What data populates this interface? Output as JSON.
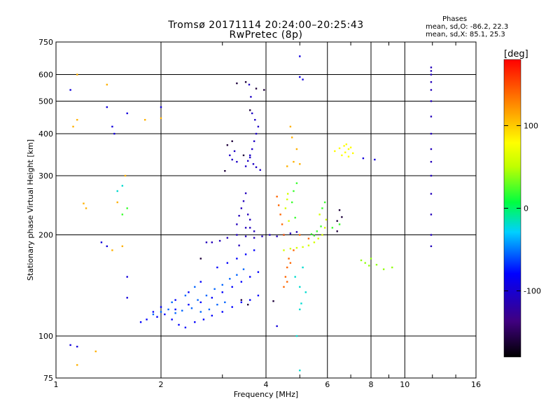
{
  "header": {
    "title": "Tromsø 20171114 20:24:00–20:25:43",
    "subtitle": "RwPretec (8p)"
  },
  "stats": {
    "heading": "Phases",
    "o_mode": "mean, sd,O: -86.2, 22.3",
    "x_mode": "mean, sd,X:  85.1, 25.3"
  },
  "colorbar": {
    "unit": "[deg]",
    "ticks": [
      100,
      0,
      -100
    ],
    "range": [
      -180,
      180
    ]
  },
  "chart_data": {
    "type": "scatter",
    "xlabel": "Frequency [MHz]",
    "ylabel": "Stationary phase Virtual Height [km]",
    "x_scale": "log",
    "y_scale": "log",
    "xlim": [
      1,
      16
    ],
    "ylim": [
      75,
      750
    ],
    "x_ticks": [
      1,
      2,
      4,
      6,
      8,
      10,
      16
    ],
    "y_ticks": [
      75,
      100,
      200,
      300,
      400,
      500,
      600,
      750
    ],
    "x_grid": [
      1,
      2,
      4,
      6,
      8,
      10,
      16
    ],
    "y_grid": [
      75,
      100,
      200,
      300,
      400,
      500,
      600,
      750
    ],
    "color_scale": "phase (deg), rainbow from -180 (black) to 180 (red)",
    "series": [
      {
        "values": [
          [
            1.75,
            110
          ],
          [
            1.82,
            112
          ],
          [
            1.95,
            114
          ],
          [
            2.05,
            116
          ],
          [
            2.15,
            112
          ],
          [
            2.25,
            108
          ],
          [
            2.35,
            106
          ],
          [
            2.5,
            110
          ],
          [
            2.65,
            112
          ],
          [
            2.8,
            115
          ],
          [
            3.0,
            118
          ],
          [
            3.2,
            122
          ],
          [
            3.4,
            126
          ],
          [
            3.6,
            128
          ],
          [
            3.8,
            132
          ],
          [
            2.2,
            120
          ],
          [
            2.4,
            124
          ],
          [
            2.6,
            126
          ],
          [
            2.8,
            130
          ],
          [
            3.0,
            135
          ],
          [
            3.2,
            140
          ],
          [
            3.4,
            145
          ],
          [
            3.6,
            150
          ],
          [
            3.8,
            155
          ],
          [
            2.9,
            160
          ],
          [
            3.1,
            165
          ],
          [
            3.3,
            170
          ],
          [
            3.5,
            175
          ],
          [
            3.7,
            180
          ],
          [
            2.6,
            145
          ],
          [
            2.4,
            135
          ],
          [
            2.2,
            128
          ],
          [
            2.0,
            122
          ],
          [
            1.9,
            118
          ]
        ],
        "phase": -80
      },
      {
        "values": [
          [
            1.9,
            116
          ],
          [
            2.0,
            118
          ],
          [
            2.1,
            120
          ],
          [
            2.2,
            117
          ],
          [
            2.3,
            119
          ],
          [
            2.45,
            121
          ],
          [
            2.6,
            118
          ],
          [
            2.75,
            120
          ],
          [
            2.9,
            124
          ],
          [
            3.05,
            126
          ],
          [
            2.55,
            128
          ],
          [
            2.7,
            132
          ],
          [
            2.85,
            138
          ],
          [
            3.0,
            142
          ],
          [
            3.15,
            148
          ],
          [
            3.3,
            152
          ],
          [
            3.45,
            158
          ],
          [
            2.5,
            140
          ],
          [
            2.35,
            132
          ],
          [
            2.15,
            126
          ]
        ],
        "phase": -55
      },
      {
        "values": [
          [
            3.3,
            215
          ],
          [
            3.35,
            228
          ],
          [
            3.4,
            240
          ],
          [
            3.45,
            252
          ],
          [
            3.5,
            266
          ],
          [
            3.55,
            230
          ],
          [
            3.6,
            210
          ],
          [
            3.7,
            205
          ],
          [
            3.3,
            200
          ],
          [
            3.5,
            198
          ],
          [
            3.7,
            196
          ],
          [
            3.9,
            198
          ],
          [
            4.1,
            200
          ],
          [
            4.3,
            198
          ],
          [
            4.5,
            200
          ],
          [
            4.7,
            202
          ],
          [
            4.9,
            204
          ],
          [
            3.1,
            196
          ],
          [
            2.95,
            192
          ],
          [
            2.8,
            190
          ],
          [
            2.7,
            190
          ],
          [
            3.35,
            186
          ],
          [
            3.5,
            210
          ],
          [
            3.6,
            222
          ]
        ],
        "phase": -110
      },
      {
        "values": [
          [
            3.5,
            320
          ],
          [
            3.55,
            332
          ],
          [
            3.6,
            345
          ],
          [
            3.65,
            360
          ],
          [
            3.7,
            380
          ],
          [
            3.75,
            400
          ],
          [
            3.8,
            420
          ],
          [
            3.72,
            440
          ],
          [
            3.65,
            460
          ],
          [
            3.6,
            340
          ],
          [
            3.68,
            325
          ],
          [
            3.75,
            318
          ],
          [
            3.85,
            312
          ],
          [
            3.62,
            515
          ],
          [
            3.58,
            560
          ],
          [
            3.2,
            335
          ],
          [
            3.25,
            355
          ],
          [
            3.15,
            345
          ],
          [
            3.3,
            330
          ]
        ],
        "phase": -105
      },
      {
        "values": [
          [
            4.5,
            180
          ],
          [
            4.7,
            182
          ],
          [
            4.9,
            183
          ],
          [
            5.1,
            184
          ],
          [
            5.3,
            186
          ],
          [
            5.5,
            190
          ],
          [
            5.65,
            195
          ],
          [
            5.8,
            200
          ],
          [
            5.9,
            210
          ],
          [
            5.95,
            222
          ],
          [
            5.7,
            230
          ],
          [
            4.55,
            240
          ],
          [
            4.6,
            255
          ],
          [
            4.62,
            265
          ],
          [
            4.65,
            220
          ]
        ],
        "phase": 60
      },
      {
        "values": [
          [
            4.5,
            140
          ],
          [
            4.55,
            150
          ],
          [
            4.6,
            160
          ],
          [
            4.65,
            170
          ],
          [
            4.5,
            200
          ],
          [
            4.45,
            215
          ],
          [
            4.4,
            230
          ],
          [
            4.35,
            245
          ],
          [
            4.3,
            260
          ],
          [
            5.3,
            195
          ],
          [
            5.0,
            200
          ],
          [
            4.8,
            180
          ],
          [
            4.7,
            165
          ],
          [
            4.6,
            145
          ]
        ],
        "phase": 140
      },
      {
        "values": [
          [
            6.3,
            355
          ],
          [
            6.5,
            362
          ],
          [
            6.7,
            368
          ],
          [
            6.9,
            360
          ],
          [
            7.1,
            350
          ],
          [
            6.6,
            345
          ],
          [
            6.8,
            372
          ],
          [
            7.0,
            364
          ],
          [
            6.75,
            352
          ],
          [
            6.9,
            342
          ]
        ],
        "phase": 80
      },
      {
        "values": [
          [
            11.9,
            185
          ],
          [
            11.9,
            200
          ],
          [
            11.9,
            230
          ],
          [
            11.9,
            265
          ],
          [
            11.9,
            300
          ],
          [
            11.9,
            330
          ],
          [
            11.9,
            360
          ],
          [
            11.9,
            400
          ],
          [
            11.9,
            450
          ],
          [
            11.9,
            500
          ],
          [
            11.9,
            540
          ],
          [
            11.9,
            570
          ],
          [
            11.9,
            600
          ],
          [
            11.9,
            615
          ],
          [
            11.9,
            630
          ]
        ],
        "phase": -110
      },
      {
        "values": [
          [
            7.7,
            165
          ],
          [
            7.9,
            162
          ],
          [
            8.3,
            163
          ],
          [
            8.7,
            158
          ],
          [
            9.2,
            160
          ],
          [
            8.0,
            170
          ],
          [
            7.5,
            168
          ]
        ],
        "phase": 40
      },
      {
        "values": [
          [
            1.15,
            600
          ],
          [
            1.4,
            560
          ],
          [
            1.15,
            440
          ],
          [
            1.12,
            420
          ],
          [
            1.2,
            248
          ],
          [
            1.22,
            240
          ],
          [
            1.5,
            250
          ],
          [
            1.58,
            300
          ],
          [
            2.0,
            445
          ],
          [
            1.55,
            185
          ],
          [
            1.45,
            180
          ],
          [
            1.3,
            90
          ],
          [
            1.15,
            82
          ],
          [
            1.8,
            440
          ],
          [
            4.6,
            320
          ],
          [
            4.8,
            330
          ],
          [
            5.0,
            325
          ],
          [
            4.9,
            360
          ],
          [
            4.75,
            390
          ],
          [
            4.7,
            420
          ]
        ],
        "phase": 110
      },
      {
        "values": [
          [
            1.1,
            540
          ],
          [
            1.4,
            480
          ],
          [
            1.6,
            460
          ],
          [
            1.45,
            420
          ],
          [
            1.47,
            400
          ],
          [
            2.0,
            480
          ],
          [
            1.4,
            185
          ],
          [
            1.35,
            190
          ],
          [
            1.6,
            130
          ],
          [
            1.1,
            94
          ],
          [
            1.15,
            93
          ],
          [
            1.6,
            150
          ],
          [
            4.3,
            107
          ],
          [
            8.2,
            335
          ],
          [
            7.6,
            338
          ],
          [
            5.0,
            590
          ],
          [
            5.1,
            580
          ],
          [
            5.0,
            680
          ]
        ],
        "phase": -95
      },
      {
        "values": [
          [
            3.1,
            370
          ],
          [
            3.2,
            380
          ],
          [
            3.45,
            345
          ],
          [
            3.05,
            310
          ],
          [
            3.6,
            470
          ],
          [
            3.3,
            565
          ],
          [
            3.5,
            570
          ],
          [
            3.75,
            545
          ],
          [
            3.95,
            540
          ],
          [
            2.6,
            170
          ],
          [
            3.4,
            128
          ],
          [
            3.55,
            124
          ],
          [
            4.2,
            127
          ],
          [
            6.4,
            220
          ],
          [
            6.6,
            226
          ],
          [
            6.5,
            237
          ],
          [
            6.4,
            205
          ]
        ],
        "phase": -160
      },
      {
        "values": [
          [
            4.9,
            100
          ],
          [
            5.0,
            120
          ],
          [
            5.05,
            125
          ],
          [
            5.0,
            140
          ],
          [
            5.1,
            160
          ],
          [
            5.0,
            79
          ],
          [
            1.55,
            280
          ],
          [
            1.5,
            270
          ],
          [
            4.85,
            150
          ],
          [
            5.2,
            135
          ]
        ],
        "phase": -20
      },
      {
        "values": [
          [
            1.55,
            230
          ],
          [
            1.6,
            240
          ],
          [
            4.75,
            250
          ],
          [
            4.85,
            225
          ],
          [
            4.8,
            270
          ],
          [
            4.9,
            285
          ],
          [
            5.6,
            205
          ],
          [
            5.75,
            212
          ],
          [
            6.2,
            210
          ],
          [
            6.5,
            215
          ],
          [
            5.5,
            199
          ],
          [
            5.4,
            201
          ],
          [
            5.8,
            240
          ],
          [
            5.9,
            250
          ]
        ],
        "phase": 20
      }
    ]
  }
}
